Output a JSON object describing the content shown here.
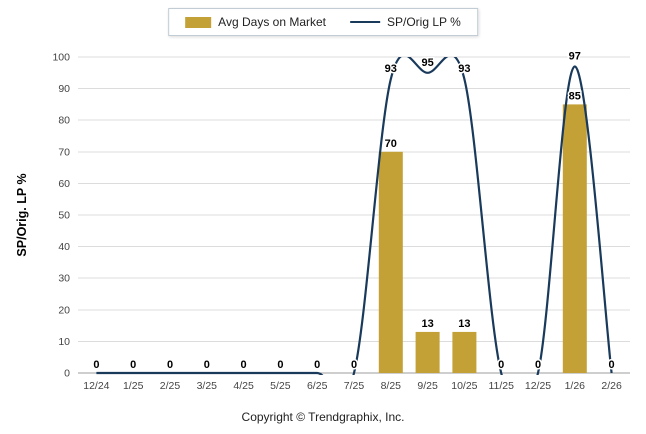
{
  "legend": {
    "bar_label": "Avg Days on Market",
    "line_label": "SP/Orig LP %"
  },
  "y_axis_title": "SP/Orig. LP %",
  "footer": "Copyright © Trendgraphix, Inc.",
  "colors": {
    "bar": "#C3A136",
    "line": "#1A3A5C",
    "grid": "#DCDCDC",
    "axis": "#9E9E9E",
    "tick": "#444444",
    "label": "#000000"
  },
  "chart_data": {
    "type": "bar",
    "categories": [
      "12/24",
      "1/25",
      "2/25",
      "3/25",
      "4/25",
      "5/25",
      "6/25",
      "7/25",
      "8/25",
      "9/25",
      "10/25",
      "11/25",
      "12/25",
      "1/26",
      "2/26"
    ],
    "series": [
      {
        "name": "Avg Days on Market",
        "type": "bar",
        "values": [
          0,
          0,
          0,
          0,
          0,
          0,
          0,
          0,
          70,
          13,
          13,
          0,
          0,
          85,
          0
        ]
      },
      {
        "name": "SP/Orig LP %",
        "type": "line",
        "values": [
          0,
          0,
          0,
          0,
          0,
          0,
          0,
          0,
          93,
          95,
          93,
          0,
          0,
          97,
          0
        ]
      }
    ],
    "title": "",
    "xlabel": "",
    "ylabel": "SP/Orig. LP %",
    "ylim": [
      0,
      100
    ],
    "y_ticks": [
      0,
      10,
      20,
      30,
      40,
      50,
      60,
      70,
      80,
      90,
      100
    ],
    "grid": true,
    "legend_position": "top",
    "line_style": "smooth"
  }
}
